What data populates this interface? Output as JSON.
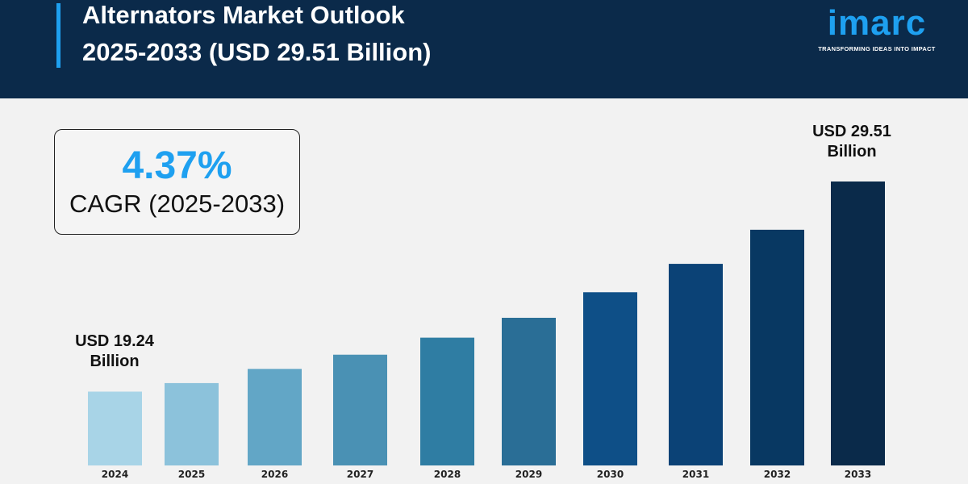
{
  "header": {
    "title_line1": "Alternators Market Outlook",
    "title_line2": "2025-2033 (USD 29.51 Billion)"
  },
  "logo": {
    "word": "imarc",
    "tagline": "TRANSFORMING IDEAS INTO IMPACT"
  },
  "cagr": {
    "value": "4.37%",
    "label": "CAGR (2025-2033)"
  },
  "chart_data": {
    "type": "bar",
    "title": "Alternators Market Outlook 2025-2033 (USD 29.51 Billion)",
    "categories": [
      "2024",
      "2025",
      "2026",
      "2027",
      "2028",
      "2029",
      "2030",
      "2031",
      "2032",
      "2033"
    ],
    "values": [
      19.24,
      null,
      null,
      null,
      null,
      null,
      null,
      null,
      null,
      29.51
    ],
    "relative_bar_levels": [
      26,
      29,
      34,
      39,
      45,
      52,
      61,
      71,
      83,
      100
    ],
    "unit": "USD Billion",
    "annotations": {
      "first_line1": "USD 19.24",
      "first_line2": "Billion",
      "last_line1": "USD 29.51",
      "last_line2": "Billion"
    },
    "colors": [
      "#a8d4e7",
      "#8cc2db",
      "#62a6c6",
      "#4a91b4",
      "#2f7da3",
      "#2a6e96",
      "#0e4f87",
      "#0b4276",
      "#083862",
      "#0a2a4a"
    ],
    "grid": false,
    "legend": "none"
  }
}
